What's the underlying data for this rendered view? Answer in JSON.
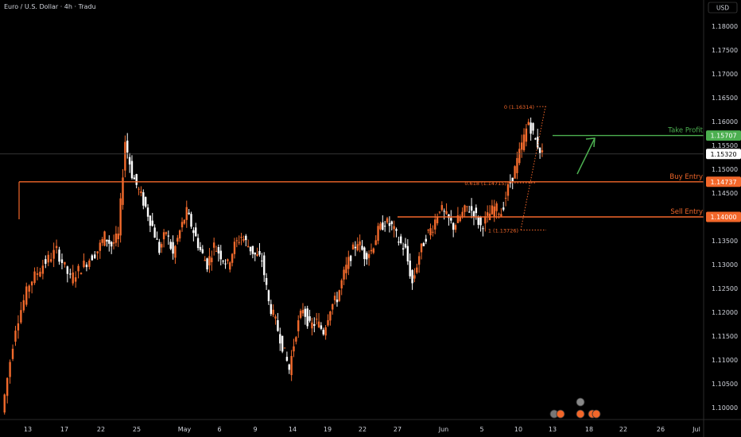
{
  "header": {
    "symbol_text": "Euro / U.S. Dollar · 4h · Tradu"
  },
  "colors": {
    "background": "#000000",
    "bull": "#f26a2c",
    "bear": "#ffffff",
    "orange": "#f2672a",
    "green": "#4caf50",
    "axis_text": "#d1d4dc",
    "current_price_bg": "#ffffff",
    "current_price_text": "#000000"
  },
  "chart_data": {
    "type": "candlestick",
    "title": "Euro / U.S. Dollar · 4h · Tradu",
    "currency_label": "USD",
    "ylim": [
      1.0965,
      1.1845
    ],
    "y_ticks": [
      "1.10000",
      "1.10500",
      "1.11000",
      "1.11500",
      "1.12000",
      "1.12500",
      "1.13000",
      "1.13500",
      "1.14000",
      "1.14500",
      "1.15000",
      "1.15500",
      "1.16000",
      "1.16500",
      "1.17000",
      "1.17500",
      "1.18000"
    ],
    "x_ticks": [
      "13",
      "17",
      "22",
      "25",
      "May",
      "6",
      "9",
      "14",
      "19",
      "22",
      "27",
      "Jun",
      "5",
      "10",
      "13",
      "18",
      "22",
      "26",
      "Jul"
    ],
    "price_path": [
      [
        0,
        1.099
      ],
      [
        2,
        1.117
      ],
      [
        4,
        1.126
      ],
      [
        6,
        1.13
      ],
      [
        8,
        1.133
      ],
      [
        10,
        1.127
      ],
      [
        12,
        1.13
      ],
      [
        14,
        1.133
      ],
      [
        15,
        1.136
      ],
      [
        16,
        1.134
      ],
      [
        17,
        1.136
      ],
      [
        18,
        1.156
      ],
      [
        19,
        1.149
      ],
      [
        20,
        1.1455
      ],
      [
        21,
        1.142
      ],
      [
        22,
        1.138
      ],
      [
        23,
        1.133
      ],
      [
        24,
        1.137
      ],
      [
        25,
        1.132
      ],
      [
        26,
        1.137
      ],
      [
        27,
        1.141
      ],
      [
        28,
        1.137
      ],
      [
        29,
        1.133
      ],
      [
        30,
        1.13
      ],
      [
        31,
        1.134
      ],
      [
        32,
        1.132
      ],
      [
        33,
        1.13
      ],
      [
        34,
        1.134
      ],
      [
        35,
        1.136
      ],
      [
        36,
        1.134
      ],
      [
        37,
        1.132
      ],
      [
        38,
        1.131
      ],
      [
        39,
        1.122
      ],
      [
        40,
        1.118
      ],
      [
        41,
        1.113
      ],
      [
        42,
        1.108
      ],
      [
        43,
        1.116
      ],
      [
        44,
        1.121
      ],
      [
        45,
        1.117
      ],
      [
        46,
        1.118
      ],
      [
        47,
        1.116
      ],
      [
        48,
        1.121
      ],
      [
        49,
        1.123
      ],
      [
        50,
        1.128
      ],
      [
        51,
        1.132
      ],
      [
        52,
        1.135
      ],
      [
        53,
        1.132
      ],
      [
        54,
        1.133
      ],
      [
        55,
        1.137
      ],
      [
        56,
        1.139
      ],
      [
        57,
        1.138
      ],
      [
        58,
        1.135
      ],
      [
        59,
        1.133
      ],
      [
        60,
        1.126
      ],
      [
        61,
        1.132
      ],
      [
        62,
        1.136
      ],
      [
        63,
        1.138
      ],
      [
        64,
        1.142
      ],
      [
        65,
        1.14
      ],
      [
        66,
        1.138
      ],
      [
        67,
        1.14
      ],
      [
        68,
        1.142
      ],
      [
        69,
        1.141
      ],
      [
        70,
        1.138
      ],
      [
        71,
        1.14
      ],
      [
        72,
        1.142
      ],
      [
        73,
        1.141
      ],
      [
        74,
        1.146
      ],
      [
        75,
        1.15
      ],
      [
        76,
        1.155
      ],
      [
        77,
        1.16
      ],
      [
        78,
        1.156
      ],
      [
        79,
        1.1532
      ]
    ],
    "levels": [
      {
        "name": "Take Profit",
        "label": "Take Profit",
        "value": 1.15707,
        "price_tag": "1.15707",
        "color": "green"
      },
      {
        "name": "Buy Entry",
        "label": "Buy Entry",
        "value": 1.14737,
        "price_tag": "1.14737",
        "color": "orange"
      },
      {
        "name": "Sell Entry",
        "label": "Sell Entry",
        "value": 1.14,
        "price_tag": "1.14000",
        "color": "orange"
      }
    ],
    "current_price": {
      "value": 1.1532,
      "label": "1.15320"
    },
    "fibonacci": [
      {
        "label": "0 (1.16314)",
        "value": 1.16314
      },
      {
        "label": "0.618 (1.14715)",
        "value": 1.14715
      },
      {
        "label": "1 (1.13726)",
        "value": 1.13726
      }
    ],
    "projection": {
      "direction": "up",
      "from": 1.149,
      "to": 1.1565
    },
    "grid": false
  }
}
